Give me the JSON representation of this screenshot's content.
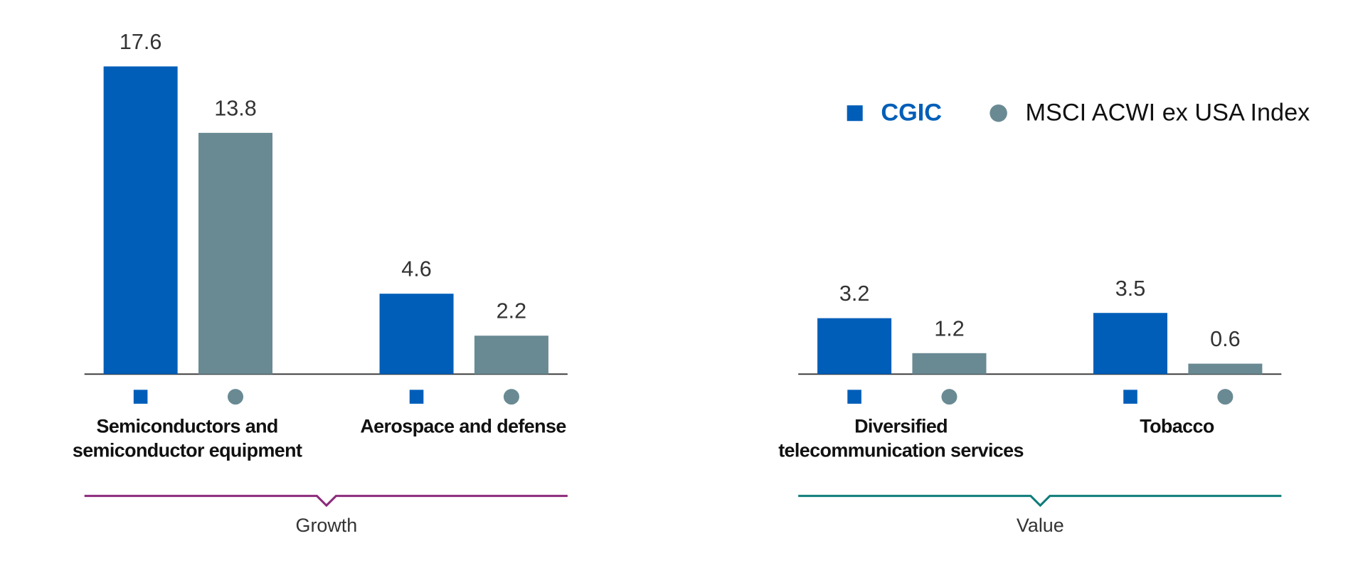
{
  "chart_data": {
    "type": "bar",
    "categories": [
      "Semiconductors and semiconductor equipment",
      "Aerospace and defense",
      "Diversified telecommunication services",
      "Tobacco"
    ],
    "group_labels": [
      "Growth",
      "Value"
    ],
    "group_colors": [
      "#8b2a7a",
      "#0f7c7a"
    ],
    "series": [
      {
        "name": "CGIC",
        "color": "#005eb8",
        "values": [
          17.6,
          4.6,
          3.2,
          3.5
        ]
      },
      {
        "name": "MSCI ACWI ex USA Index",
        "color": "#6a8a93",
        "values": [
          13.8,
          2.2,
          1.2,
          0.6
        ]
      }
    ]
  }
}
